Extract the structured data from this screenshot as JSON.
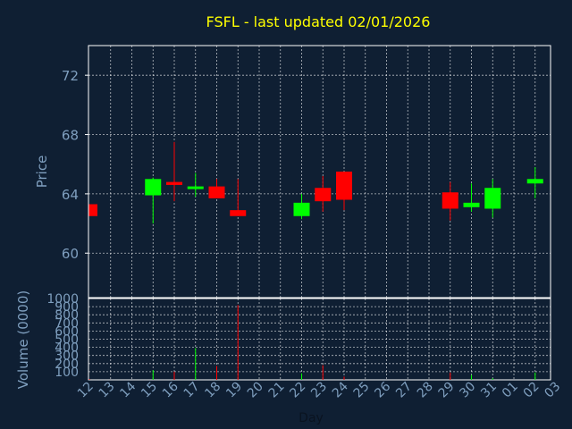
{
  "title": "FSFL - last updated 02/01/2026",
  "colors": {
    "background": "#0f1f33",
    "frame": "#ffffff",
    "grid": "#ffffff",
    "title": "#ffff00",
    "axis_text": "#7f9fbf",
    "up": "#00ff00",
    "down": "#ff0000"
  },
  "chart_data": [
    {
      "type": "candlestick",
      "ylabel": "Price",
      "ylim": [
        57,
        74
      ],
      "yticks": [
        60,
        64,
        68,
        72
      ],
      "x_ticks": [
        "12",
        "13",
        "14",
        "15",
        "16",
        "17",
        "18",
        "19",
        "20",
        "21",
        "22",
        "23",
        "24",
        "25",
        "26",
        "27",
        "28",
        "29",
        "30",
        "31",
        "01",
        "02",
        "03"
      ],
      "grid": true,
      "candles": [
        {
          "day": "12",
          "open": 63.3,
          "high": 63.3,
          "low": 62.5,
          "close": 62.5
        },
        {
          "day": "15",
          "open": 63.9,
          "high": 65.1,
          "low": 62.0,
          "close": 65.0
        },
        {
          "day": "16",
          "open": 64.8,
          "high": 67.5,
          "low": 63.5,
          "close": 64.6
        },
        {
          "day": "17",
          "open": 64.4,
          "high": 65.4,
          "low": 63.8,
          "close": 64.5
        },
        {
          "day": "18",
          "open": 64.5,
          "high": 65.0,
          "low": 63.7,
          "close": 63.7
        },
        {
          "day": "19",
          "open": 62.9,
          "high": 65.0,
          "low": 62.5,
          "close": 62.5
        },
        {
          "day": "22",
          "open": 62.5,
          "high": 64.0,
          "low": 62.3,
          "close": 63.4
        },
        {
          "day": "23",
          "open": 64.4,
          "high": 65.2,
          "low": 62.8,
          "close": 63.5
        },
        {
          "day": "24",
          "open": 65.5,
          "high": 65.5,
          "low": 62.9,
          "close": 63.6
        },
        {
          "day": "29",
          "open": 64.1,
          "high": 64.8,
          "low": 62.2,
          "close": 63.0
        },
        {
          "day": "30",
          "open": 63.1,
          "high": 64.7,
          "low": 62.8,
          "close": 63.4
        },
        {
          "day": "31",
          "open": 63.0,
          "high": 65.0,
          "low": 62.4,
          "close": 64.4
        },
        {
          "day": "02",
          "open": 64.7,
          "high": 65.8,
          "low": 63.7,
          "close": 65.0
        }
      ]
    },
    {
      "type": "bar",
      "ylabel": "Volume (0000)",
      "xlabel": "Day",
      "ylim": [
        0,
        1000
      ],
      "yticks": [
        0,
        100,
        200,
        300,
        400,
        500,
        600,
        700,
        800,
        900,
        1000
      ],
      "ytick_labels": [
        "",
        "100",
        "200",
        "300",
        "400",
        "500",
        "600",
        "700",
        "800",
        "900",
        "1000"
      ],
      "x_ticks": [
        "12",
        "13",
        "14",
        "15",
        "16",
        "17",
        "18",
        "19",
        "20",
        "21",
        "22",
        "23",
        "24",
        "25",
        "26",
        "27",
        "28",
        "29",
        "30",
        "31",
        "01",
        "02",
        "03"
      ],
      "grid": true,
      "bars": [
        {
          "day": "12",
          "value": 10,
          "direction": "down"
        },
        {
          "day": "15",
          "value": 120,
          "direction": "up"
        },
        {
          "day": "16",
          "value": 100,
          "direction": "down"
        },
        {
          "day": "17",
          "value": 390,
          "direction": "up"
        },
        {
          "day": "18",
          "value": 170,
          "direction": "down"
        },
        {
          "day": "19",
          "value": 920,
          "direction": "down"
        },
        {
          "day": "22",
          "value": 80,
          "direction": "up"
        },
        {
          "day": "23",
          "value": 180,
          "direction": "down"
        },
        {
          "day": "24",
          "value": 40,
          "direction": "down"
        },
        {
          "day": "29",
          "value": 90,
          "direction": "down"
        },
        {
          "day": "30",
          "value": 60,
          "direction": "up"
        },
        {
          "day": "31",
          "value": 20,
          "direction": "up"
        },
        {
          "day": "02",
          "value": 90,
          "direction": "up"
        }
      ]
    }
  ]
}
